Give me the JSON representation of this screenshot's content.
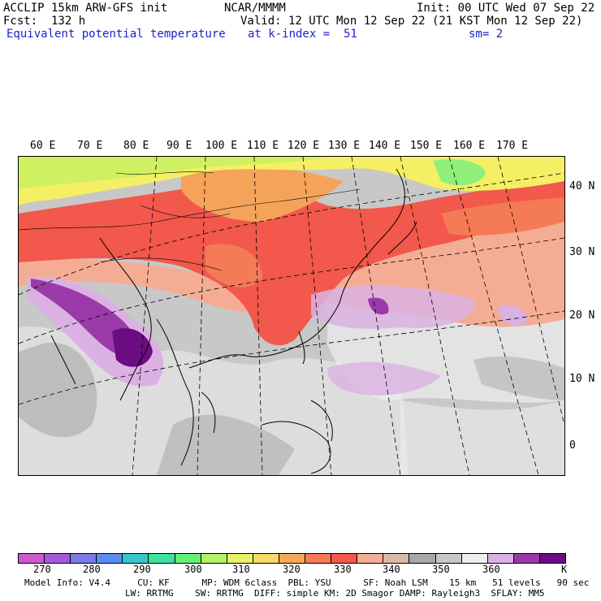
{
  "header": {
    "model": "ACCLIP 15km ARW-GFS init",
    "org": "NCAR/MMMM",
    "init": "Init: 00 UTC Wed 07 Sep 22",
    "fcst": "Fcst:  132 h",
    "valid": "Valid: 12 UTC Mon 12 Sep 22 (21 KST Mon 12 Sep 22)",
    "field": "Equivalent potential temperature",
    "level": "at k-index =  51",
    "smooth": "sm= 2"
  },
  "map": {
    "lon_labels": [
      "60 E",
      "70 E",
      "80 E",
      "90 E",
      "100 E",
      "110 E",
      "120 E",
      "130 E",
      "140 E",
      "150 E",
      "160 E",
      "170 E"
    ],
    "lat_labels": [
      "40 N",
      "30 N",
      "20 N",
      "10 N",
      "0"
    ],
    "fill_colors": {
      "green": "#8ef07a",
      "yellow_green": "#cff061",
      "yellow": "#f5ef63",
      "orange": "#f5a35a",
      "red": "#f2584b",
      "red_orange": "#f47b55",
      "salmon": "#f4ad94",
      "gray_light": "#eeeeee",
      "gray": "#c8c8c8",
      "gray_dark": "#a8a8a8",
      "lavender": "#dbb1e3",
      "purple": "#9a3aa8",
      "dark_purple": "#6a0c82"
    }
  },
  "colorbar": {
    "colors": [
      "#cc5acc",
      "#a45ad8",
      "#7a7ae8",
      "#5a8ef0",
      "#36c8c8",
      "#3ee0a0",
      "#66f07a",
      "#b6f066",
      "#e8f06a",
      "#f7d86a",
      "#f5a85a",
      "#f47b55",
      "#f2584b",
      "#f4ad94",
      "#d9b9a8",
      "#a8a8a8",
      "#c8c8c8",
      "#eeeeee",
      "#dbb1e3",
      "#9a3aa8",
      "#6a0c82"
    ],
    "labels": [
      "270",
      "280",
      "290",
      "300",
      "310",
      "320",
      "330",
      "340",
      "350",
      "360"
    ],
    "unit": "K"
  },
  "footer": {
    "line1": "Model Info: V4.4     CU: KF      MP: WDM 6class  PBL: YSU      SF: Noah LSM    15 km   51 levels   90 sec",
    "line2": "LW: RRTMG    SW: RRTMG  DIFF: simple KM: 2D Smagor DAMP: Rayleigh3  SFLAY: MM5"
  }
}
